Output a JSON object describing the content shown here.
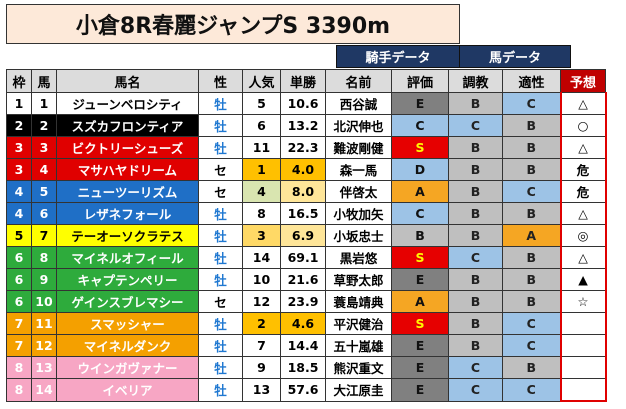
{
  "title": "小倉8R春麗ジャンプS 3390m",
  "groups": {
    "jockey": "騎手データ",
    "horse": "馬データ"
  },
  "headers": [
    "枠",
    "馬",
    "馬名",
    "性",
    "人気",
    "単勝",
    "名前",
    "評価",
    "調教",
    "適性",
    "予想"
  ],
  "colors": {
    "frame": {
      "1": "#ffffff",
      "2": "#000000",
      "3": "#e00000",
      "4": "#1f6fc6",
      "5": "#ffff00",
      "6": "#2eab3c",
      "7": "#f4a000",
      "8": "#f7a6c4"
    },
    "grade": {
      "A": "#f5a623",
      "S": "#e60000",
      "B": "#bfbfbf",
      "C": "#9dc3e6",
      "D": "#9dc3e6",
      "E": "#808080"
    }
  },
  "rows": [
    {
      "frame": "1",
      "num": "1",
      "name": "ジューンベロシティ",
      "sex": "牡",
      "pop": "5",
      "odds": "10.6",
      "jockey": "西谷誠",
      "eval": "E",
      "train": "B",
      "apt": "C",
      "pred": "△"
    },
    {
      "frame": "2",
      "num": "2",
      "name": "スズカフロンティア",
      "sex": "牡",
      "pop": "6",
      "odds": "13.2",
      "jockey": "北沢伸也",
      "eval": "C",
      "train": "C",
      "apt": "B",
      "pred": "○"
    },
    {
      "frame": "3",
      "num": "3",
      "name": "ビクトリーシューズ",
      "sex": "牡",
      "pop": "11",
      "odds": "22.3",
      "jockey": "難波剛健",
      "eval": "S",
      "train": "B",
      "apt": "B",
      "pred": "△"
    },
    {
      "frame": "3",
      "num": "4",
      "name": "マサハヤドリーム",
      "sex": "セ",
      "pop": "1",
      "odds": "4.0",
      "jockey": "森一馬",
      "eval": "D",
      "train": "B",
      "apt": "B",
      "pred": "危"
    },
    {
      "frame": "4",
      "num": "5",
      "name": "ニューツーリズム",
      "sex": "セ",
      "pop": "4",
      "odds": "8.0",
      "jockey": "伴啓太",
      "eval": "A",
      "train": "B",
      "apt": "C",
      "pred": "危"
    },
    {
      "frame": "4",
      "num": "6",
      "name": "レザネフォール",
      "sex": "牡",
      "pop": "8",
      "odds": "16.5",
      "jockey": "小牧加矢",
      "eval": "C",
      "train": "B",
      "apt": "B",
      "pred": "△"
    },
    {
      "frame": "5",
      "num": "7",
      "name": "テーオーソクラテス",
      "sex": "牡",
      "pop": "3",
      "odds": "6.9",
      "jockey": "小坂忠士",
      "eval": "B",
      "train": "B",
      "apt": "A",
      "pred": "◎"
    },
    {
      "frame": "6",
      "num": "8",
      "name": "マイネルオフィール",
      "sex": "牡",
      "pop": "14",
      "odds": "69.1",
      "jockey": "黒岩悠",
      "eval": "S",
      "train": "C",
      "apt": "B",
      "pred": "△"
    },
    {
      "frame": "6",
      "num": "9",
      "name": "キャプテンペリー",
      "sex": "牡",
      "pop": "10",
      "odds": "21.6",
      "jockey": "草野太郎",
      "eval": "E",
      "train": "B",
      "apt": "B",
      "pred": "▲"
    },
    {
      "frame": "6",
      "num": "10",
      "name": "ゲインスブレマシー",
      "sex": "セ",
      "pop": "12",
      "odds": "23.9",
      "jockey": "蓑島靖典",
      "eval": "A",
      "train": "B",
      "apt": "B",
      "pred": "☆"
    },
    {
      "frame": "7",
      "num": "11",
      "name": "スマッシャー",
      "sex": "牡",
      "pop": "2",
      "odds": "4.6",
      "jockey": "平沢健治",
      "eval": "S",
      "train": "B",
      "apt": "C",
      "pred": ""
    },
    {
      "frame": "7",
      "num": "12",
      "name": "マイネルダンク",
      "sex": "牡",
      "pop": "7",
      "odds": "14.4",
      "jockey": "五十嵐雄",
      "eval": "E",
      "train": "B",
      "apt": "C",
      "pred": ""
    },
    {
      "frame": "8",
      "num": "13",
      "name": "ウインガヴァナー",
      "sex": "牡",
      "pop": "9",
      "odds": "18.5",
      "jockey": "熊沢重文",
      "eval": "E",
      "train": "C",
      "apt": "B",
      "pred": ""
    },
    {
      "frame": "8",
      "num": "14",
      "name": "イベリア",
      "sex": "牡",
      "pop": "13",
      "odds": "57.6",
      "jockey": "大江原圭",
      "eval": "E",
      "train": "C",
      "apt": "C",
      "pred": ""
    }
  ]
}
